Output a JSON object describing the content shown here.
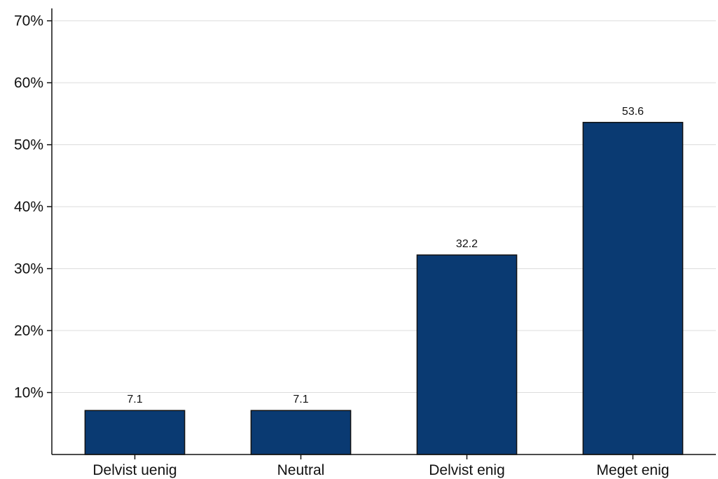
{
  "chart_data": {
    "type": "bar",
    "title": "",
    "xlabel": "",
    "ylabel": "",
    "categories": [
      "Delvist uenig",
      "Neutral",
      "Delvist enig",
      "Meget enig"
    ],
    "values": [
      7.1,
      7.1,
      32.2,
      53.6
    ],
    "data_labels": [
      "7.1",
      "7.1",
      "32.2",
      "53.6"
    ],
    "ylim": [
      0,
      72
    ],
    "yticks": [
      10,
      20,
      30,
      40,
      50,
      60,
      70
    ],
    "ytick_labels": [
      "10%",
      "20%",
      "30%",
      "40%",
      "50%",
      "60%",
      "70%"
    ],
    "grid": true,
    "legend": "none",
    "bar_color": "#0a3a72"
  }
}
